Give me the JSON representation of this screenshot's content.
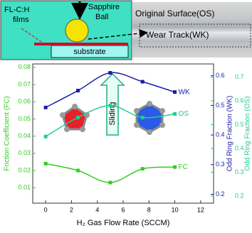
{
  "diagram": {
    "films_label": [
      "FL-C:H",
      "films"
    ],
    "ball_label": [
      "Sapphire",
      "Ball"
    ],
    "substrate_label": "substrate",
    "os_label": "Original Surface(OS)",
    "wk_label": "Wear Track(WK)"
  },
  "chart_data": {
    "type": "line",
    "xlabel": "H₂ Gas Flow Rate (SCCM)",
    "ylabel": "Friction Coefficient (FC)",
    "y2label": "Odd Ring Fraction (WK)",
    "y3label": "Odd Ring Fraction (OS)",
    "annotation": "Sliding",
    "x": [
      0,
      2.5,
      5,
      7.5,
      10
    ],
    "series": [
      {
        "name": "WK",
        "color": "#1c1ca8",
        "axis": "y2",
        "values": [
          0.493,
          0.55,
          0.61,
          0.58,
          0.545
        ]
      },
      {
        "name": "OS",
        "color": "#22cc8e",
        "axis": "y3",
        "values": [
          0.45,
          0.53,
          0.58,
          0.53,
          0.545
        ]
      },
      {
        "name": "FC",
        "color": "#33cc22",
        "axis": "y",
        "values": [
          0.024,
          0.02,
          0.013,
          0.021,
          0.022
        ]
      }
    ],
    "xlim": [
      -1,
      13
    ],
    "xticks": [
      0,
      2,
      4,
      6,
      8,
      10,
      12
    ],
    "ylim": [
      0.001,
      0.082
    ],
    "yticks": [
      0.01,
      0.02,
      0.03,
      0.04,
      0.05,
      0.06,
      0.07,
      0.08
    ],
    "y2lim": [
      0.17,
      0.64
    ],
    "y2ticks": [
      0.2,
      0.3,
      0.4,
      0.5,
      0.6
    ],
    "y3lim": [
      0.17,
      0.755
    ],
    "y3ticks": [
      0.2,
      0.3,
      0.4,
      0.5,
      0.6,
      0.7
    ]
  }
}
